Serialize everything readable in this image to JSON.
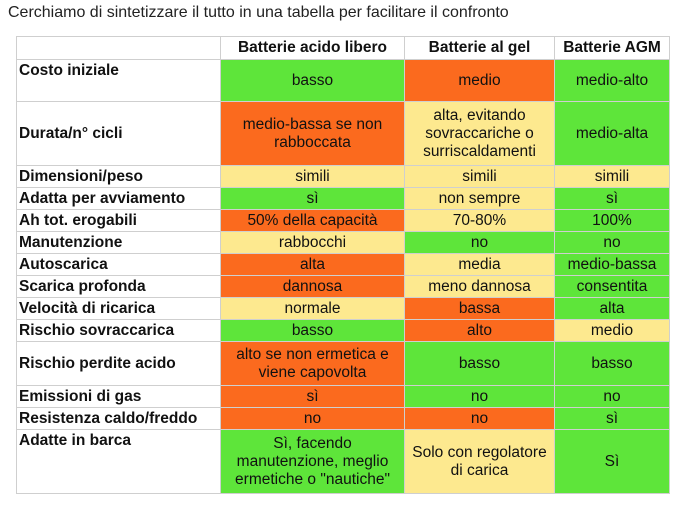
{
  "intro": "Cerchiamo di sintetizzare il tutto in una tabella per facilitare il confronto",
  "colors": {
    "green": "#5ee53a",
    "orange": "#fb6a1e",
    "yellow": "#fde98f"
  },
  "columns": [
    "",
    "Batterie acido libero",
    "Batterie al gel",
    "Batterie AGM"
  ],
  "rows": [
    {
      "feature": "Costo iniziale",
      "cells": [
        {
          "text": "basso",
          "color": "green"
        },
        {
          "text": "medio",
          "color": "orange"
        },
        {
          "text": "medio-alto",
          "color": "green"
        }
      ]
    },
    {
      "feature": "Durata/n° cicli",
      "cells": [
        {
          "text": "medio-bassa se non rabboccata",
          "color": "orange"
        },
        {
          "text": "alta, evitando sovraccariche o surriscaldamenti",
          "color": "yellow"
        },
        {
          "text": "medio-alta",
          "color": "green"
        }
      ]
    },
    {
      "feature": "Dimensioni/peso",
      "cells": [
        {
          "text": "simili",
          "color": "yellow"
        },
        {
          "text": "simili",
          "color": "yellow"
        },
        {
          "text": "simili",
          "color": "yellow"
        }
      ]
    },
    {
      "feature": "Adatta per avviamento",
      "cells": [
        {
          "text": "sì",
          "color": "green"
        },
        {
          "text": "non sempre",
          "color": "yellow"
        },
        {
          "text": "sì",
          "color": "green"
        }
      ]
    },
    {
      "feature": "Ah tot. erogabili",
      "cells": [
        {
          "text": "50% della capacità",
          "color": "orange"
        },
        {
          "text": "70-80%",
          "color": "yellow"
        },
        {
          "text": "100%",
          "color": "green"
        }
      ]
    },
    {
      "feature": "Manutenzione",
      "cells": [
        {
          "text": "rabbocchi",
          "color": "yellow"
        },
        {
          "text": "no",
          "color": "green"
        },
        {
          "text": "no",
          "color": "green"
        }
      ]
    },
    {
      "feature": "Autoscarica",
      "cells": [
        {
          "text": "alta",
          "color": "orange"
        },
        {
          "text": "media",
          "color": "yellow"
        },
        {
          "text": "medio-bassa",
          "color": "green"
        }
      ]
    },
    {
      "feature": "Scarica profonda",
      "cells": [
        {
          "text": "dannosa",
          "color": "orange"
        },
        {
          "text": "meno dannosa",
          "color": "yellow"
        },
        {
          "text": "consentita",
          "color": "green"
        }
      ]
    },
    {
      "feature": "Velocità  di ricarica",
      "cells": [
        {
          "text": "normale",
          "color": "yellow"
        },
        {
          "text": "bassa",
          "color": "orange"
        },
        {
          "text": "alta",
          "color": "green"
        }
      ]
    },
    {
      "feature": "Rischio sovraccarica",
      "cells": [
        {
          "text": "basso",
          "color": "green"
        },
        {
          "text": "alto",
          "color": "orange"
        },
        {
          "text": "medio",
          "color": "yellow"
        }
      ]
    },
    {
      "feature": "Rischio perdite acido",
      "cells": [
        {
          "text": "alto se non ermetica e viene capovolta",
          "color": "orange"
        },
        {
          "text": "basso",
          "color": "green"
        },
        {
          "text": "basso",
          "color": "green"
        }
      ]
    },
    {
      "feature": "Emissioni di gas",
      "cells": [
        {
          "text": "sì",
          "color": "orange"
        },
        {
          "text": "no",
          "color": "green"
        },
        {
          "text": "no",
          "color": "green"
        }
      ]
    },
    {
      "feature": "Resistenza caldo/freddo",
      "cells": [
        {
          "text": "no",
          "color": "orange"
        },
        {
          "text": "no",
          "color": "orange"
        },
        {
          "text": "sì",
          "color": "green"
        }
      ]
    },
    {
      "feature": "Adatte in barca",
      "cells": [
        {
          "text": "Sì, facendo manutenzione, meglio ermetiche o \"nautiche\"",
          "color": "green"
        },
        {
          "text": "Solo con regolatore di carica",
          "color": "yellow"
        },
        {
          "text": "Sì",
          "color": "green"
        }
      ]
    }
  ]
}
